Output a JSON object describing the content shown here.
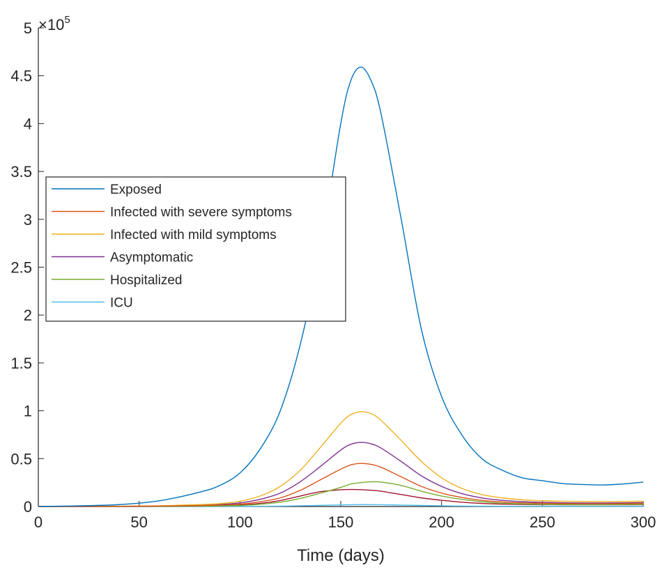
{
  "chart_data": {
    "type": "line",
    "xlabel": "Time (days)",
    "ylabel": "",
    "xlim": [
      0,
      300
    ],
    "ylim": [
      0,
      500000
    ],
    "x_ticks": [
      "0",
      "50",
      "100",
      "150",
      "200",
      "250",
      "300"
    ],
    "y_ticks": [
      "0",
      "0.5",
      "1",
      "1.5",
      "2",
      "2.5",
      "3",
      "3.5",
      "4",
      "4.5",
      "5"
    ],
    "y_multiplier": {
      "base": "×10",
      "exponent": "5"
    },
    "grid": false,
    "legend_position": "center-left",
    "x": [
      0,
      20,
      40,
      60,
      80,
      90,
      100,
      110,
      120,
      130,
      140,
      150,
      155,
      160,
      165,
      170,
      180,
      190,
      200,
      210,
      220,
      230,
      240,
      250,
      260,
      270,
      280,
      290,
      300
    ],
    "series": [
      {
        "name": "Exposed",
        "color": "#0072BD",
        "values": [
          0,
          700,
          2000,
          6000,
          15000,
          22000,
          35000,
          60000,
          100000,
          170000,
          270000,
          400000,
          445000,
          459000,
          445000,
          410000,
          300000,
          185000,
          115000,
          75000,
          50000,
          38000,
          30000,
          27000,
          24000,
          23000,
          22500,
          23500,
          25500
        ]
      },
      {
        "name": "Infected with severe symptoms",
        "color": "#D95319",
        "values": [
          0,
          50,
          150,
          400,
          1000,
          1500,
          2500,
          5000,
          9000,
          17000,
          28000,
          39000,
          43500,
          45000,
          44000,
          41000,
          31000,
          21000,
          14000,
          9500,
          6500,
          4800,
          3800,
          3300,
          3000,
          2900,
          2900,
          3000,
          3200
        ]
      },
      {
        "name": "Infected with mild symptoms",
        "color": "#EDB120",
        "values": [
          0,
          100,
          300,
          800,
          2000,
          3000,
          5500,
          11000,
          21000,
          38000,
          62000,
          87000,
          96000,
          99000,
          97000,
          90000,
          69000,
          47000,
          30000,
          19000,
          12500,
          9000,
          7000,
          6000,
          5500,
          5300,
          5200,
          5300,
          5500
        ]
      },
      {
        "name": "Asymptomatic",
        "color": "#7E2F8E",
        "values": [
          0,
          70,
          200,
          550,
          1400,
          2100,
          3800,
          7500,
          14000,
          26000,
          42000,
          59000,
          65000,
          67000,
          65500,
          61000,
          47000,
          32000,
          21000,
          13500,
          9000,
          6500,
          5000,
          4300,
          3900,
          3700,
          3700,
          3800,
          4000
        ]
      },
      {
        "name": "Hospitalized",
        "color": "#77AC30",
        "values": [
          0,
          20,
          60,
          160,
          400,
          650,
          1100,
          2300,
          4500,
          8500,
          14000,
          20000,
          23500,
          25000,
          25800,
          25500,
          22000,
          16000,
          11000,
          7500,
          5000,
          3500,
          2700,
          2200,
          2000,
          1900,
          1900,
          2000,
          2100
        ]
      },
      {
        "name": "ICU",
        "color": "#4DBEEE",
        "values": [
          0,
          2,
          6,
          15,
          40,
          60,
          100,
          200,
          400,
          750,
          1200,
          1700,
          1900,
          2000,
          1950,
          1850,
          1500,
          1100,
          750,
          500,
          350,
          260,
          210,
          180,
          160,
          150,
          150,
          160,
          170
        ]
      }
    ],
    "extra_trace": {
      "color": "#A2142F",
      "values": [
        0,
        30,
        90,
        250,
        600,
        950,
        1600,
        3300,
        6200,
        11000,
        15500,
        17500,
        17800,
        17600,
        17000,
        16000,
        12500,
        9000,
        6500,
        4500,
        3200,
        2500,
        2100,
        1900,
        1800,
        1750,
        1750,
        1800,
        1850
      ]
    }
  }
}
